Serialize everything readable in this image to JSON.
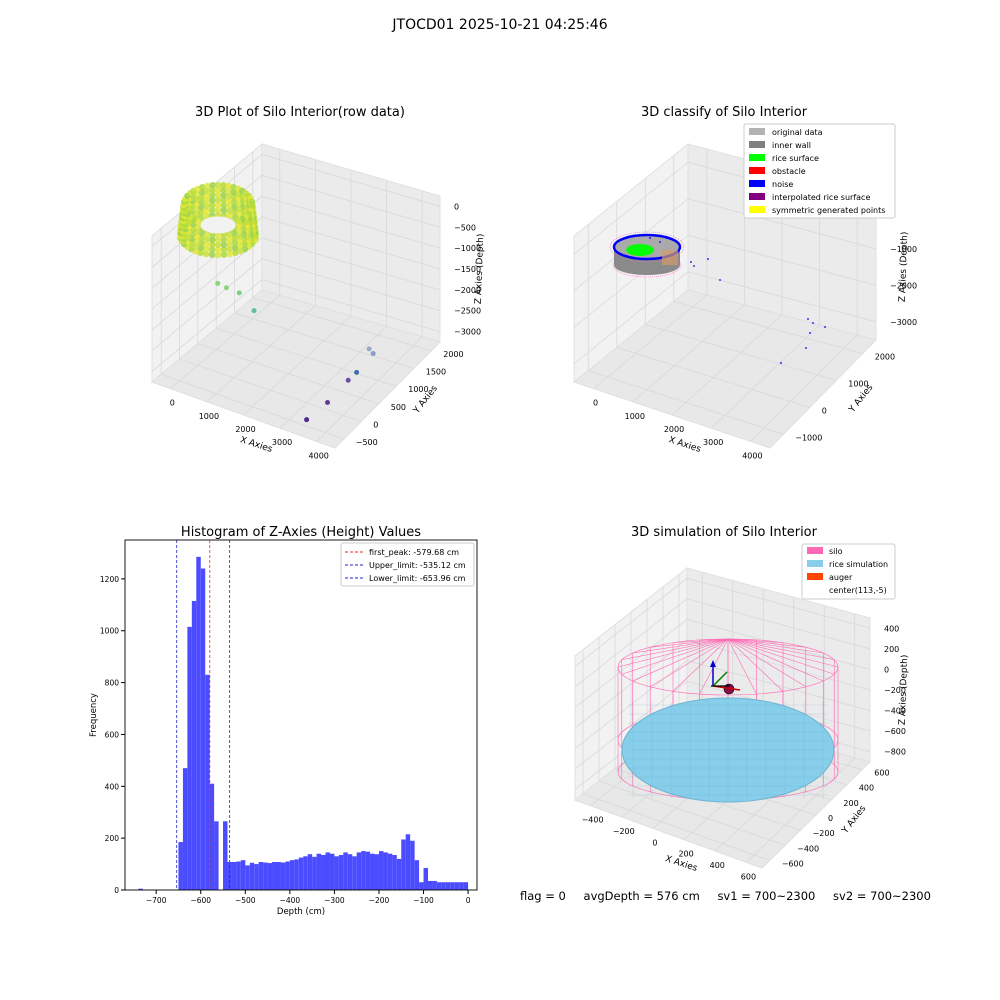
{
  "suptitle": "JTOCD01 2025-10-21 04:25:46",
  "status": {
    "flag": "flag = 0",
    "avg": "avgDepth = 576 cm",
    "sv1": "sv1 = 700~2300",
    "sv2": "sv2 = 700~2300"
  },
  "colors": {
    "hist": "#4b4bff",
    "peak": "#ff2020",
    "limit": "#2222cc",
    "silo": "#ff69b4",
    "rice": "#87ceeb",
    "auger": "#ff4500",
    "grid": "#d8d8d8",
    "pane": "#f2f2f2"
  },
  "chart_data": [
    {
      "id": "raw",
      "type": "scatter",
      "title": "3D Plot of Silo Interior(row data)",
      "xlabel": "X Axies",
      "ylabel": "Y Axies",
      "zlabel": "Z Axies (Depth)",
      "x_ticks": [
        "0",
        "1000",
        "2000",
        "3000",
        "4000"
      ],
      "y_ticks": [
        "−500",
        "0",
        "500",
        "1000",
        "1500",
        "2000"
      ],
      "z_ticks": [
        "0",
        "−500",
        "−1000",
        "−1500",
        "−2000",
        "−2500",
        "−3000"
      ],
      "outliers": [
        {
          "x": 900,
          "y": 50,
          "z": -750
        },
        {
          "x": 1100,
          "y": 50,
          "z": -780
        },
        {
          "x": 1350,
          "y": 100,
          "z": -850
        },
        {
          "x": 1500,
          "y": 300,
          "z": -1400
        },
        {
          "x": 3300,
          "y": 1200,
          "z": -2400
        },
        {
          "x": 3300,
          "y": 1300,
          "z": -2600
        },
        {
          "x": 3200,
          "y": 1000,
          "z": -2850
        },
        {
          "x": 3100,
          "y": 900,
          "z": -3000
        },
        {
          "x": 3000,
          "y": 500,
          "z": -3250
        },
        {
          "x": 2800,
          "y": 200,
          "z": -3500
        }
      ]
    },
    {
      "id": "classify",
      "type": "scatter",
      "title": "3D classify of Silo Interior",
      "xlabel": "X Axies",
      "ylabel": "Y Axies",
      "zlabel": "Z Axies (Depth)",
      "x_ticks": [
        "0",
        "1000",
        "2000",
        "3000",
        "4000"
      ],
      "y_ticks": [
        "−1000",
        "0",
        "1000",
        "2000"
      ],
      "z_ticks": [
        "0",
        "−1000",
        "−2000",
        "−3000"
      ],
      "legend": [
        "original data",
        "inner wall",
        "rice surface",
        "obstacle",
        "noise",
        "interpolated rice surface",
        "symmetric generated points"
      ],
      "legend_colors": [
        "#b3b3b3",
        "#808080",
        "#00ff00",
        "#ff0000",
        "#0000ff",
        "#800080",
        "#ffff00"
      ],
      "legend_loc": "upper right"
    },
    {
      "id": "hist",
      "type": "bar",
      "title": "Histogram of Z-Axies (Height) Values",
      "xlabel": "Depth (cm)",
      "ylabel": "Frequency",
      "xlim": [
        -770,
        20
      ],
      "ylim": [
        0,
        1350
      ],
      "x_ticks": [
        -700,
        -600,
        -500,
        -400,
        -300,
        -200,
        -100,
        0
      ],
      "y_ticks": [
        0,
        200,
        400,
        600,
        800,
        1000,
        1200
      ],
      "bin_width": 10,
      "bins": [
        [
          -735,
          5
        ],
        [
          -645,
          185
        ],
        [
          -635,
          470
        ],
        [
          -625,
          1015
        ],
        [
          -615,
          1115
        ],
        [
          -605,
          1285
        ],
        [
          -595,
          1240
        ],
        [
          -585,
          830
        ],
        [
          -575,
          410
        ],
        [
          -565,
          265
        ],
        [
          -545,
          265
        ],
        [
          -535,
          108
        ],
        [
          -525,
          108
        ],
        [
          -515,
          110
        ],
        [
          -505,
          115
        ],
        [
          -495,
          95
        ],
        [
          -485,
          105
        ],
        [
          -475,
          100
        ],
        [
          -465,
          108
        ],
        [
          -455,
          106
        ],
        [
          -445,
          104
        ],
        [
          -435,
          108
        ],
        [
          -425,
          108
        ],
        [
          -415,
          106
        ],
        [
          -405,
          110
        ],
        [
          -395,
          115
        ],
        [
          -385,
          118
        ],
        [
          -375,
          125
        ],
        [
          -365,
          130
        ],
        [
          -355,
          138
        ],
        [
          -345,
          128
        ],
        [
          -335,
          140
        ],
        [
          -325,
          135
        ],
        [
          -315,
          145
        ],
        [
          -305,
          140
        ],
        [
          -295,
          130
        ],
        [
          -285,
          135
        ],
        [
          -275,
          145
        ],
        [
          -265,
          138
        ],
        [
          -255,
          130
        ],
        [
          -245,
          145
        ],
        [
          -235,
          150
        ],
        [
          -225,
          148
        ],
        [
          -215,
          140
        ],
        [
          -205,
          138
        ],
        [
          -195,
          150
        ],
        [
          -185,
          145
        ],
        [
          -175,
          140
        ],
        [
          -165,
          135
        ],
        [
          -155,
          120
        ],
        [
          -145,
          195
        ],
        [
          -135,
          215
        ],
        [
          -125,
          190
        ],
        [
          -115,
          115
        ],
        [
          -105,
          30
        ],
        [
          -95,
          85
        ],
        [
          -85,
          35
        ],
        [
          -75,
          35
        ],
        [
          -65,
          30
        ],
        [
          -55,
          30
        ],
        [
          -45,
          30
        ],
        [
          -35,
          30
        ],
        [
          -25,
          30
        ],
        [
          -15,
          30
        ],
        [
          -5,
          30
        ]
      ],
      "lines": [
        {
          "x": -579.68,
          "label": "first_peak: -579.68 cm",
          "kind": "peak"
        },
        {
          "x": -535.12,
          "label": "Upper_limit: -535.12 cm",
          "kind": "limit"
        },
        {
          "x": -653.96,
          "label": "Lower_limit: -653.96 cm",
          "kind": "limit"
        }
      ],
      "legend_loc": "upper right"
    },
    {
      "id": "sim",
      "type": "scatter",
      "title": "3D simulation of Silo Interior",
      "xlabel": "X Axies",
      "ylabel": "Y Axies",
      "zlabel": "Z Axies (Depth)",
      "x_ticks": [
        "−400",
        "−200",
        "0",
        "200",
        "400",
        "600"
      ],
      "y_ticks": [
        "−600",
        "−400",
        "−200",
        "0",
        "200",
        "400",
        "600"
      ],
      "z_ticks": [
        "400",
        "200",
        "0",
        "−200",
        "−400",
        "−600",
        "−800"
      ],
      "legend": [
        "silo",
        "rice simulation",
        "auger",
        "center(113,-5)"
      ],
      "legend_colors": [
        "#ff69b4",
        "#87ceeb",
        "#ff4500",
        "none"
      ],
      "legend_loc": "upper right"
    }
  ]
}
